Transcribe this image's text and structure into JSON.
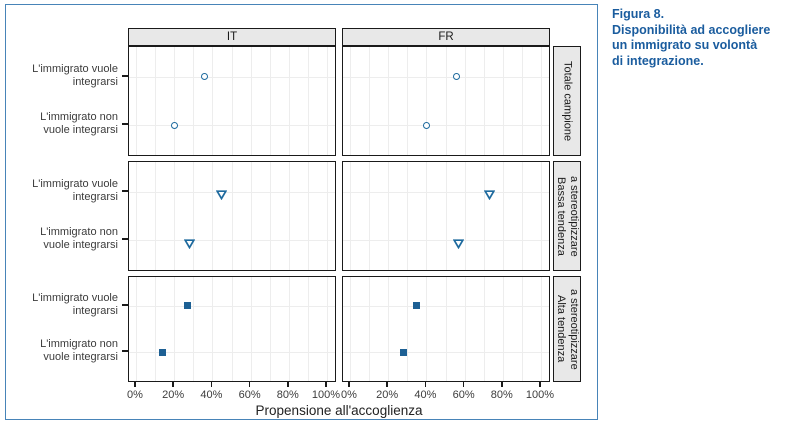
{
  "figure": {
    "caption_title": "Figura 8.",
    "caption_body": "Disponibilità ad accogliere\nun immigrato su volontà\ndi integrazione.",
    "accent_color": "#1a5c9e",
    "border_color": "#4784b8",
    "marker_color": "#1e6a9e",
    "strip_background": "#e8e8e8",
    "gridline_color": "#ededed"
  },
  "chart_data": {
    "type": "scatter",
    "title": "Figura 8. Disponibilità ad accogliere un immigrato su volontà di integrazione.",
    "xlabel": "Propensione all'accoglienza",
    "x_ticks": [
      "0%",
      "20%",
      "40%",
      "60%",
      "80%",
      "100%"
    ],
    "xlim": [
      0,
      100
    ],
    "grid": {
      "vertical_step_pct": 10,
      "horizontal": "one line per category row"
    },
    "legend_position": "none",
    "facet_columns": [
      "IT",
      "FR"
    ],
    "facet_rows": [
      "Totale campione",
      "Bassa tendenza\na stereotipizzare",
      "Alta tendenza\na stereotipizzare"
    ],
    "categories": [
      "L'immigrato vuole\nintegrarsi",
      "L'immigrato non\nvuole integrarsi"
    ],
    "category_order_note": "values_pct[0] = vuole integrarsi, values_pct[1] = non vuole integrarsi",
    "markers_by_row": [
      "open-circle",
      "open-triangle-down",
      "filled-square"
    ],
    "panels": [
      {
        "row": 0,
        "col": 0,
        "facet_row": "Totale campione",
        "facet_col": "IT",
        "values_pct": [
          36,
          20
        ]
      },
      {
        "row": 0,
        "col": 1,
        "facet_row": "Totale campione",
        "facet_col": "FR",
        "values_pct": [
          56,
          40
        ]
      },
      {
        "row": 1,
        "col": 0,
        "facet_row": "Bassa tendenza a stereotipizzare",
        "facet_col": "IT",
        "values_pct": [
          45,
          28
        ]
      },
      {
        "row": 1,
        "col": 1,
        "facet_row": "Bassa tendenza a stereotipizzare",
        "facet_col": "FR",
        "values_pct": [
          73,
          57
        ]
      },
      {
        "row": 2,
        "col": 0,
        "facet_row": "Alta tendenza a stereotipizzare",
        "facet_col": "IT",
        "values_pct": [
          27,
          14
        ]
      },
      {
        "row": 2,
        "col": 1,
        "facet_row": "Alta tendenza a stereotipizzare",
        "facet_col": "FR",
        "values_pct": [
          35,
          28
        ]
      }
    ]
  }
}
